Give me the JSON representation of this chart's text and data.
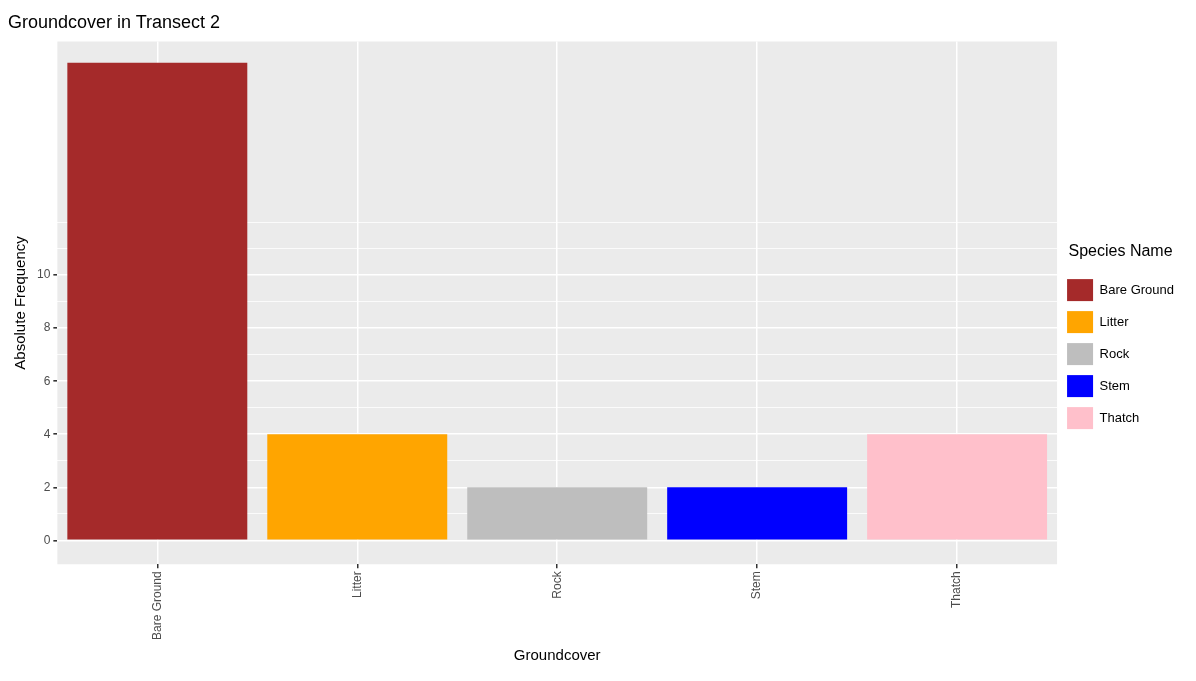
{
  "chart_data": {
    "type": "bar",
    "title": "Groundcover in Transect 2",
    "xlabel": "Groundcover",
    "ylabel": "Absolute Frequency",
    "legend_title": "Species Name",
    "categories": [
      "Bare Ground",
      "Litter",
      "Rock",
      "Stem",
      "Thatch"
    ],
    "series": [
      {
        "name": "Bare Ground",
        "color": "#a52a2a",
        "values": [
          18,
          null,
          null,
          null,
          null
        ]
      },
      {
        "name": "Litter",
        "color": "#ffa500",
        "values": [
          null,
          4,
          null,
          null,
          null
        ]
      },
      {
        "name": "Rock",
        "color": "#bebebe",
        "values": [
          null,
          null,
          2,
          null,
          null
        ]
      },
      {
        "name": "Stem",
        "color": "#0000ff",
        "values": [
          null,
          null,
          null,
          2,
          null
        ]
      },
      {
        "name": "Thatch",
        "color": "#ffc0cb",
        "values": [
          null,
          null,
          null,
          null,
          4
        ]
      }
    ],
    "ylim": [
      -0.9,
      18.8
    ],
    "yticks": [
      0,
      {
        "value": 1,
        "label": null
      },
      2,
      {
        "value": 3,
        "label": null
      },
      4,
      {
        "value": 5,
        "label": null
      },
      6,
      {
        "value": 7,
        "label": null
      },
      8,
      {
        "value": 9,
        "label": null
      },
      10,
      {
        "value": 11,
        "label": null
      },
      {
        "value": 12,
        "label": null
      }
    ],
    "grid": true,
    "legend": "right"
  }
}
